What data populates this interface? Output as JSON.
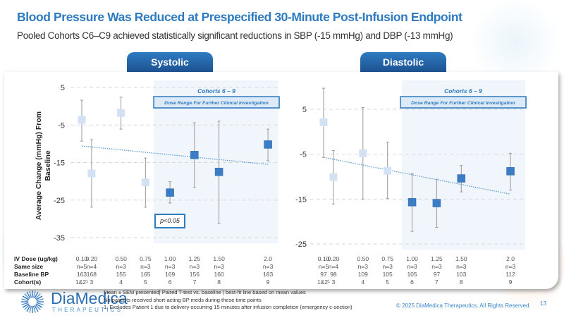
{
  "header": {
    "title": "Blood Pressure Was Reduced at Prespecified 30-Minute Post-Infusion Endpoint",
    "subtitle": "Pooled Cohorts C6–C9 achieved statistically significant reductions in SBP (-15 mmHg) and DBP (-13 mmHg)"
  },
  "tabs": [
    {
      "label": "Systolic"
    },
    {
      "label": "Diastolic"
    }
  ],
  "colors": {
    "accent": "#2f7bc0",
    "marker_light": "#d3e2f3",
    "marker_dark": "#3b7dc4",
    "shade": "#f1f6fc",
    "trend": "#5b9bd5"
  },
  "y_axis_label": "Average Change (mmHg) From Baseline",
  "table_labels": [
    "IV Dose (ug/kg)",
    "Same size",
    "Baseline BP",
    "Cohort(s)"
  ],
  "chart_data": [
    {
      "type": "scatter",
      "title": "Systolic",
      "ylabel": "Average Change (mmHg) From Baseline",
      "ylim": [
        -35,
        5
      ],
      "yticks": [
        "5",
        "-5",
        "-15",
        "-25",
        "-35"
      ],
      "grid": true,
      "highlight_label": "Cohorts 6 – 9",
      "highlight_box": "Dose Range For Further Clinical Investigation",
      "annotation": "p<0.05",
      "trendline": {
        "style": "dotted",
        "from": [
          0.1,
          -10.6
        ],
        "to": [
          2.0,
          -15.5
        ]
      },
      "points": [
        {
          "dose": 0.1,
          "mean": -3.6,
          "low": -9.3,
          "high": 1.6,
          "highlighted": false
        },
        {
          "dose": 0.2,
          "mean": -17.9,
          "low": -26.9,
          "high": -8.9,
          "highlighted": false
        },
        {
          "dose": 0.5,
          "mean": -1.8,
          "low": -6.1,
          "high": 2.4,
          "highlighted": false
        },
        {
          "dose": 0.75,
          "mean": -20.3,
          "low": -26.9,
          "high": -13.8,
          "highlighted": false
        },
        {
          "dose": 1.0,
          "mean": -23.0,
          "low": -25.8,
          "high": -20.1,
          "highlighted": true
        },
        {
          "dose": 1.25,
          "mean": -13.0,
          "low": -21.6,
          "high": -4.4,
          "highlighted": true
        },
        {
          "dose": 1.5,
          "mean": -17.5,
          "low": -31.2,
          "high": -4.0,
          "highlighted": true
        },
        {
          "dose": 2.0,
          "mean": -10.2,
          "low": -14.5,
          "high": -6.1,
          "highlighted": true
        }
      ],
      "table": {
        "dose": [
          "0.10",
          "0.20",
          "0.50",
          "0.75",
          "1.00",
          "1.25",
          "1.50",
          "2.0"
        ],
        "n": [
          "n=5",
          "n=4",
          "n=3",
          "n=3",
          "n=3",
          "n=3",
          "n=3",
          "n=3"
        ],
        "baseline": [
          "163",
          "168",
          "155",
          "165",
          "169",
          "156",
          "160",
          "183"
        ],
        "cohort": [
          "1&2¹",
          "3",
          "4",
          "5",
          "6",
          "7",
          "8",
          "9"
        ]
      }
    },
    {
      "type": "scatter",
      "title": "Diastolic",
      "ylim": [
        -25,
        5
      ],
      "yticks": [
        "5",
        "-5",
        "-15",
        "-25"
      ],
      "grid": true,
      "highlight_label": "Cohorts 6 – 9",
      "highlight_box": "Dose Range For Further Clinical Investigation",
      "trendline": {
        "style": "dotted",
        "from": [
          0.1,
          -5.7
        ],
        "to": [
          2.0,
          -13.9
        ]
      },
      "points": [
        {
          "dose": 0.1,
          "mean": 2.1,
          "low": -5.7,
          "high": 9.7,
          "highlighted": false
        },
        {
          "dose": 0.2,
          "mean": -10.1,
          "low": -16.1,
          "high": -4.2,
          "highlighted": false
        },
        {
          "dose": 0.5,
          "mean": -4.8,
          "low": -15.0,
          "high": 5.4,
          "highlighted": false
        },
        {
          "dose": 0.75,
          "mean": -8.7,
          "low": -14.9,
          "high": -2.3,
          "highlighted": false
        },
        {
          "dose": 1.0,
          "mean": -15.7,
          "low": -22.2,
          "high": -9.3,
          "highlighted": true
        },
        {
          "dose": 1.25,
          "mean": -15.9,
          "low": -21.3,
          "high": -10.6,
          "highlighted": true
        },
        {
          "dose": 1.5,
          "mean": -10.4,
          "low": -13.4,
          "high": -7.5,
          "highlighted": true
        },
        {
          "dose": 2.0,
          "mean": -8.8,
          "low": -13.0,
          "high": -4.8,
          "highlighted": true
        }
      ],
      "table": {
        "dose": [
          "0.10",
          "0.20",
          "0.50",
          "0.75",
          "1.00",
          "1.25",
          "1.50",
          "2.0"
        ],
        "n": [
          "n=5",
          "n=4",
          "n=3",
          "n=3",
          "n=3",
          "n=3",
          "n=3",
          "n=3"
        ],
        "baseline": [
          "97",
          "98",
          "109",
          "105",
          "105",
          "97",
          "103",
          "112"
        ],
        "cohort": [
          "1&2¹",
          "3",
          "4",
          "5",
          "6",
          "7",
          "8",
          "9"
        ]
      }
    }
  ],
  "footer": {
    "logo_name": "DiaMedica",
    "logo_sub": "THERAPEUTICS",
    "notes": [
      "Mean ± SEM presented| Paired T-test vs. baseline | best-fit line based on mean values",
      "No patients received short-acting BP meds during these time points",
      "1.    Excludes Patient 1 due to delivery occurring 15 minutes after infusion completion (emergency c-section)"
    ],
    "copyright": "© 2025 DiaMedica Therapeutics. All Rights Reserved.",
    "page_number": "13"
  }
}
